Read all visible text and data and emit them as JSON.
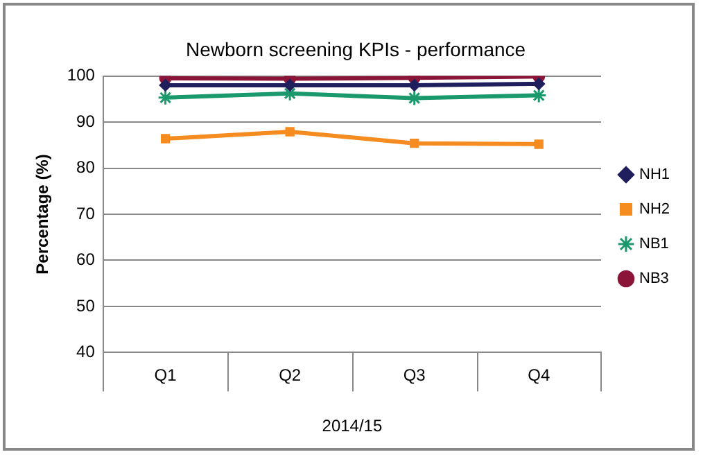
{
  "chart_data": {
    "type": "line",
    "title": "Newborn screening KPIs - performance",
    "ylabel": "Percentage (%)",
    "xlabel": "2014/15",
    "categories": [
      "Q1",
      "Q2",
      "Q3",
      "Q4"
    ],
    "series": [
      {
        "name": "NH1",
        "color": "#1f1f5e",
        "marker": "diamond",
        "values": [
          98.0,
          98.0,
          98.0,
          98.3
        ]
      },
      {
        "name": "NH2",
        "color": "#f68b1f",
        "marker": "square",
        "values": [
          86.4,
          87.9,
          85.4,
          85.2
        ]
      },
      {
        "name": "NB1",
        "color": "#1a9a6c",
        "marker": "cross",
        "values": [
          95.3,
          96.2,
          95.2,
          95.8
        ]
      },
      {
        "name": "NB3",
        "color": "#8b1538",
        "marker": "circle",
        "values": [
          99.5,
          99.4,
          99.6,
          99.9
        ]
      }
    ],
    "ylim": [
      40,
      100
    ],
    "yticks": [
      40,
      50,
      60,
      70,
      80,
      90,
      100
    ],
    "grid": "y",
    "legend": "right"
  }
}
